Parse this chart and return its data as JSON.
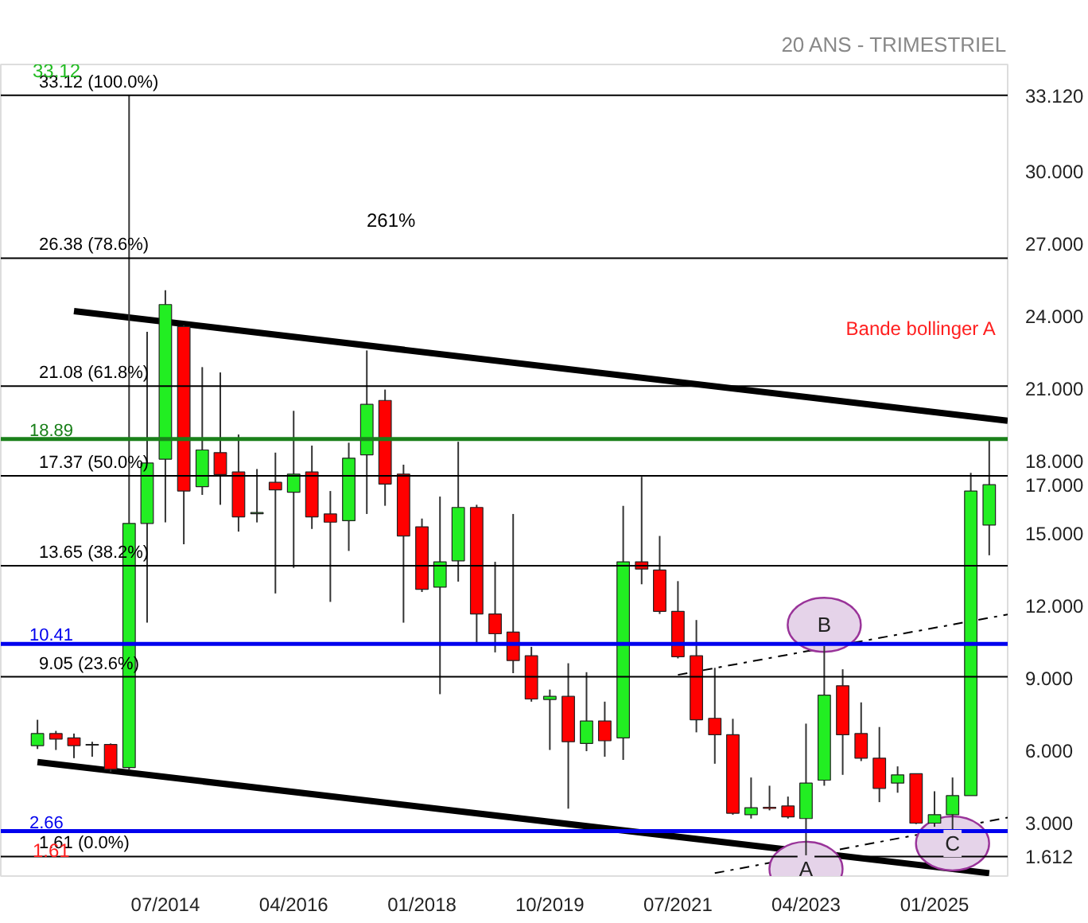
{
  "chart_data": {
    "type": "candlestick",
    "subtitle": "20 ANS - TRIMESTRIEL",
    "x": [
      "2012-10",
      "2013-01",
      "2013-04",
      "2013-07",
      "2013-10",
      "2014-01",
      "2014-04",
      "2014-07",
      "2014-10",
      "2015-01",
      "2015-04",
      "2015-07",
      "2015-10",
      "2016-01",
      "2016-04",
      "2016-07",
      "2016-10",
      "2017-01",
      "2017-04",
      "2017-07",
      "2017-10",
      "2018-01",
      "2018-04",
      "2018-07",
      "2018-10",
      "2019-01",
      "2019-04",
      "2019-07",
      "2019-10",
      "2020-01",
      "2020-04",
      "2020-07",
      "2020-10",
      "2021-01",
      "2021-04",
      "2021-07",
      "2021-10",
      "2022-01",
      "2022-04",
      "2022-07",
      "2022-10",
      "2023-01",
      "2023-04",
      "2023-07",
      "2023-10",
      "2024-01",
      "2024-04",
      "2024-07",
      "2024-10",
      "2025-01",
      "2025-04",
      "2025-07",
      "2025-10"
    ],
    "ohlc": [
      [
        6.2,
        7.27,
        6.06,
        6.7
      ],
      [
        6.7,
        6.81,
        6.02,
        6.47
      ],
      [
        6.52,
        6.7,
        5.68,
        6.2
      ],
      [
        6.25,
        6.36,
        5.74,
        6.22
      ],
      [
        6.25,
        6.29,
        5.11,
        5.22
      ],
      [
        5.29,
        33.12,
        5.2,
        15.4
      ],
      [
        15.4,
        23.33,
        11.29,
        17.9
      ],
      [
        18.06,
        25.05,
        15.44,
        24.46
      ],
      [
        23.55,
        23.6,
        14.54,
        16.74
      ],
      [
        16.92,
        21.87,
        16.58,
        18.44
      ],
      [
        18.33,
        21.65,
        16.17,
        17.42
      ],
      [
        17.53,
        19.08,
        15.06,
        15.67
      ],
      [
        15.8,
        17.65,
        15.44,
        15.85
      ],
      [
        17.1,
        18.33,
        12.5,
        16.79
      ],
      [
        16.69,
        20.06,
        13.56,
        17.44
      ],
      [
        17.53,
        18.62,
        15.17,
        15.67
      ],
      [
        15.79,
        16.74,
        12.15,
        15.45
      ],
      [
        15.51,
        18.74,
        14.26,
        18.1
      ],
      [
        18.24,
        22.56,
        15.79,
        20.33
      ],
      [
        20.49,
        20.94,
        16.13,
        17.03
      ],
      [
        17.44,
        17.83,
        11.29,
        14.88
      ],
      [
        15.26,
        15.6,
        12.56,
        12.67
      ],
      [
        12.76,
        16.51,
        8.33,
        13.81
      ],
      [
        13.85,
        18.78,
        12.99,
        16.06
      ],
      [
        16.06,
        16.17,
        10.45,
        11.65
      ],
      [
        11.65,
        13.81,
        10.06,
        10.83
      ],
      [
        10.9,
        15.79,
        9.2,
        9.72
      ],
      [
        9.92,
        10.29,
        8.02,
        8.13
      ],
      [
        8.11,
        8.52,
        6.02,
        8.24
      ],
      [
        8.24,
        9.61,
        3.59,
        6.36
      ],
      [
        6.29,
        9.24,
        5.97,
        7.22
      ],
      [
        7.22,
        8.02,
        5.74,
        6.4
      ],
      [
        6.52,
        16.13,
        5.61,
        13.81
      ],
      [
        13.81,
        17.33,
        12.88,
        13.51
      ],
      [
        13.47,
        14.88,
        11.65,
        11.76
      ],
      [
        11.76,
        13.01,
        9.81,
        9.88
      ],
      [
        9.92,
        11.4,
        6.75,
        7.27
      ],
      [
        7.33,
        9.42,
        5.45,
        6.65
      ],
      [
        6.65,
        7.31,
        3.34,
        3.4
      ],
      [
        3.34,
        4.88,
        3.18,
        3.63
      ],
      [
        3.65,
        4.54,
        3.52,
        3.6
      ],
      [
        3.7,
        4.09,
        3.18,
        3.25
      ],
      [
        3.18,
        7.11,
        1.612,
        4.65
      ],
      [
        4.77,
        10.33,
        4.54,
        8.29
      ],
      [
        8.68,
        9.36,
        4.99,
        6.65
      ],
      [
        6.7,
        7.99,
        5.56,
        5.68
      ],
      [
        5.68,
        6.97,
        3.86,
        4.43
      ],
      [
        4.65,
        5.34,
        4.25,
        4.99
      ],
      [
        5.04,
        5.04,
        2.95,
        2.99
      ],
      [
        2.99,
        4.31,
        2.84,
        3.34
      ],
      [
        3.34,
        4.88,
        2.72,
        4.13
      ],
      [
        4.13,
        17.49,
        4.13,
        16.74
      ],
      [
        15.33,
        18.83,
        14.08,
        17.0
      ]
    ],
    "series": [
      {
        "type": "line",
        "color": "#000000",
        "x": [
          "2013-04",
          "2026-01"
        ],
        "values": [
          24.19,
          19.65
        ]
      },
      {
        "type": "line",
        "color": "#000000",
        "x": [
          "2012-10",
          "2025-10"
        ],
        "values": [
          5.52,
          0.92
        ]
      },
      {
        "type": "line",
        "color": "#000000",
        "line_style": "dashdot",
        "x": [
          "2022-01",
          "2026-01"
        ],
        "values": [
          0.92,
          3.22
        ]
      },
      {
        "type": "line",
        "color": "#000000",
        "line_style": "dashdot",
        "x": [
          "2021-07",
          "2026-01"
        ],
        "values": [
          9.13,
          11.63
        ]
      }
    ],
    "ref_lines": [
      {
        "axis": "y",
        "value": 33.12,
        "label": "33.12  (100.0%)",
        "color": "#000000"
      },
      {
        "axis": "y",
        "value": 26.38,
        "label": "26.38  (78.6%)",
        "color": "#000000"
      },
      {
        "axis": "y",
        "value": 21.08,
        "label": "21.08  (61.8%)",
        "color": "#000000"
      },
      {
        "axis": "y",
        "value": 18.89,
        "label": "18.89",
        "color": "#1a801a"
      },
      {
        "axis": "y",
        "value": 17.37,
        "label": "17.37  (50.0%)",
        "color": "#000000"
      },
      {
        "axis": "y",
        "value": 13.65,
        "label": "13.65  (38.2%)",
        "color": "#000000"
      },
      {
        "axis": "y",
        "value": 10.41,
        "label": "10.41",
        "color": "#0000ee"
      },
      {
        "axis": "y",
        "value": 9.05,
        "label": "9.05  (23.6%)",
        "color": "#000000"
      },
      {
        "axis": "y",
        "value": 2.66,
        "label": "2.66",
        "color": "#0000ee"
      },
      {
        "axis": "y",
        "value": 1.61,
        "label": "1.61  (0.0%)",
        "color": "#000000"
      }
    ],
    "annotations": [
      "261%",
      "Bande bollinger A",
      "33.12",
      "1.61",
      {
        "text": "A",
        "x": "2023-04",
        "y": 1.1
      },
      {
        "text": "B",
        "x": "2023-07",
        "y": 11.2
      },
      {
        "text": "C",
        "x": "2025-04",
        "y": 2.15
      }
    ],
    "xlim": [
      "2012-04",
      "2026-01"
    ],
    "xticks": [
      {
        "value": "2014-07",
        "label": "07/2014"
      },
      {
        "value": "2016-04",
        "label": "04/2016"
      },
      {
        "value": "2018-01",
        "label": "01/2018"
      },
      {
        "value": "2019-10",
        "label": "10/2019"
      },
      {
        "value": "2021-07",
        "label": "07/2021"
      },
      {
        "value": "2023-04",
        "label": "04/2023"
      },
      {
        "value": "2025-01",
        "label": "01/2025"
      }
    ],
    "ylim": [
      0.8,
      34.4
    ],
    "yticks": [
      {
        "value": 3,
        "label": "3.000"
      },
      {
        "value": 6,
        "label": "6.000"
      },
      {
        "value": 9,
        "label": "9.000"
      },
      {
        "value": 12,
        "label": "12.000"
      },
      {
        "value": 15,
        "label": "15.000"
      },
      {
        "value": 18,
        "label": "18.000"
      },
      {
        "value": 21,
        "label": "21.000"
      },
      {
        "value": 24,
        "label": "24.000"
      },
      {
        "value": 27,
        "label": "27.000"
      },
      {
        "value": 30,
        "label": "30.000"
      },
      {
        "value": 33.12,
        "label": "33.120"
      },
      {
        "value": 17.0,
        "label": "17.000"
      },
      {
        "value": 1.612,
        "label": "1.612"
      }
    ],
    "grid": false
  }
}
